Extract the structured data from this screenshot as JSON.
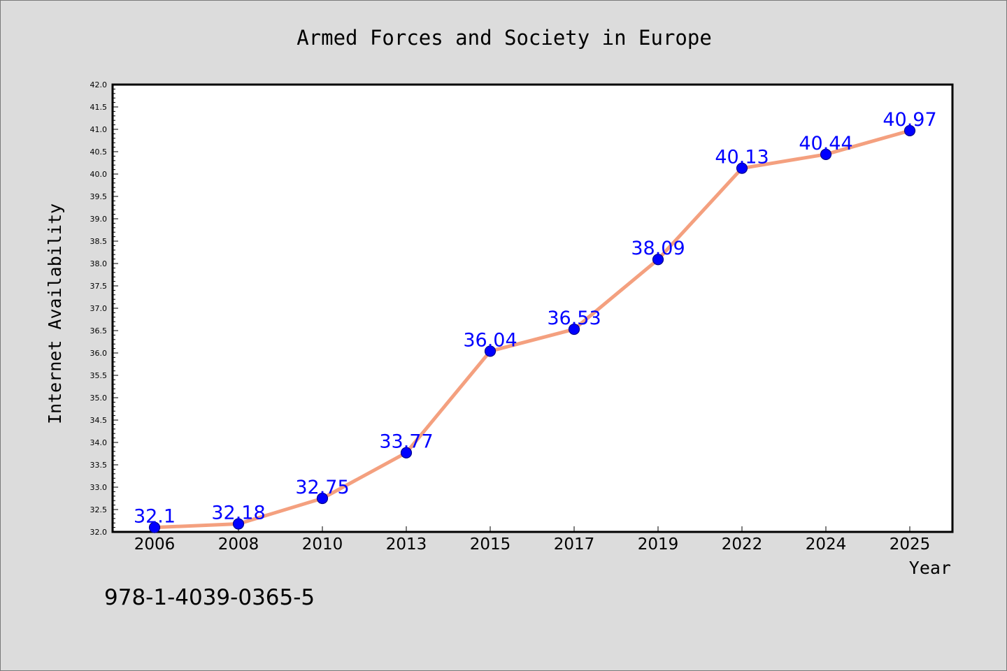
{
  "colors": {
    "background": "#dcdcdc",
    "plot_background": "#ffffff",
    "line": "#f4a07f",
    "marker": "#0000ff",
    "label": "#0000ff"
  },
  "footer": {
    "isbn": "978-1-4039-0365-5"
  },
  "chart_data": {
    "type": "line",
    "title": "Armed Forces and Society in Europe",
    "xlabel": "Year",
    "ylabel": "Internet Availability",
    "categories": [
      "2006",
      "2008",
      "2010",
      "2013",
      "2015",
      "2017",
      "2019",
      "2022",
      "2024",
      "2025"
    ],
    "series": [
      {
        "values": [
          32.1,
          32.18,
          32.75,
          33.77,
          36.04,
          36.53,
          38.09,
          40.13,
          40.44,
          40.97
        ],
        "data_labels": [
          "32.1",
          "32.18",
          "32.75",
          "33.77",
          "36.04",
          "36.53",
          "38.09",
          "40.13",
          "40.44",
          "40.97"
        ]
      }
    ],
    "ylim": [
      32.0,
      42.0
    ],
    "yticks": [
      "32.0",
      "32.5",
      "33.0",
      "33.5",
      "34.0",
      "34.5",
      "35.0",
      "35.5",
      "36.0",
      "36.5",
      "37.0",
      "37.5",
      "38.0",
      "38.5",
      "39.0",
      "39.5",
      "40.0",
      "40.5",
      "41.0",
      "41.5",
      "42.0"
    ],
    "grid": false,
    "legend": "none",
    "markers": "circle"
  }
}
